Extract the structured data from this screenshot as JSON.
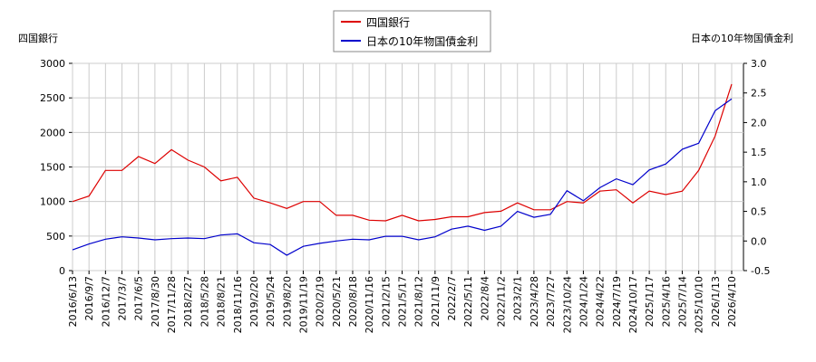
{
  "chart_data": {
    "type": "line",
    "ylabel": "四国銀行",
    "y2label": "日本の10年物国債金利",
    "legend": "top",
    "grid": true,
    "categories": [
      "2016/6/13",
      "2016/9/7",
      "2016/12/7",
      "2017/3/7",
      "2017/6/5",
      "2017/8/30",
      "2017/11/28",
      "2018/2/27",
      "2018/5/28",
      "2018/8/21",
      "2018/11/16",
      "2019/2/20",
      "2019/5/24",
      "2019/8/20",
      "2019/11/19",
      "2020/2/19",
      "2020/5/21",
      "2020/8/18",
      "2020/11/16",
      "2021/2/15",
      "2021/5/17",
      "2021/8/12",
      "2021/11/9",
      "2022/2/7",
      "2022/5/11",
      "2022/8/4",
      "2022/11/2",
      "2023/2/1",
      "2023/4/28",
      "2023/7/27",
      "2023/10/24",
      "2024/1/24",
      "2024/4/22",
      "2024/7/19",
      "2024/10/17",
      "2025/1/17",
      "2025/4/16",
      "2025/7/14",
      "2025/10/10",
      "2026/1/13",
      "2026/4/10"
    ],
    "series": [
      {
        "name": "四国銀行",
        "color": "#dd0000",
        "values": [
          1000,
          1080,
          1450,
          1450,
          1650,
          1550,
          1750,
          1600,
          1500,
          1300,
          1350,
          1050,
          980,
          900,
          1000,
          1000,
          800,
          800,
          730,
          720,
          800,
          720,
          740,
          780,
          780,
          840,
          860,
          980,
          880,
          880,
          1000,
          980,
          1150,
          1170,
          980,
          1150,
          1100,
          1150,
          1450,
          1950,
          2700
        ]
      },
      {
        "name": "日本の10年物国債金利",
        "color": "#0000cc",
        "axis": "y2",
        "values": [
          -0.15,
          -0.05,
          0.03,
          0.07,
          0.05,
          0.02,
          0.04,
          0.05,
          0.04,
          0.1,
          0.12,
          -0.03,
          -0.06,
          -0.24,
          -0.09,
          -0.04,
          0.0,
          0.03,
          0.02,
          0.08,
          0.08,
          0.02,
          0.07,
          0.2,
          0.25,
          0.18,
          0.25,
          0.5,
          0.4,
          0.45,
          0.85,
          0.68,
          0.9,
          1.05,
          0.95,
          1.2,
          1.3,
          1.55,
          1.65,
          2.2,
          2.4
        ]
      }
    ],
    "ylim": [
      0,
      3000
    ],
    "yticks": [
      0,
      500,
      1000,
      1500,
      2000,
      2500,
      3000
    ],
    "y2lim": [
      -0.5,
      3.0
    ],
    "y2ticks": [
      -0.5,
      {
        "value": 0,
        "label": "0.0"
      },
      0.5,
      {
        "value": 1,
        "label": "1.0"
      },
      1.5,
      {
        "value": 2,
        "label": "2.0"
      },
      2.5,
      {
        "value": 3,
        "label": "3.0"
      }
    ]
  }
}
